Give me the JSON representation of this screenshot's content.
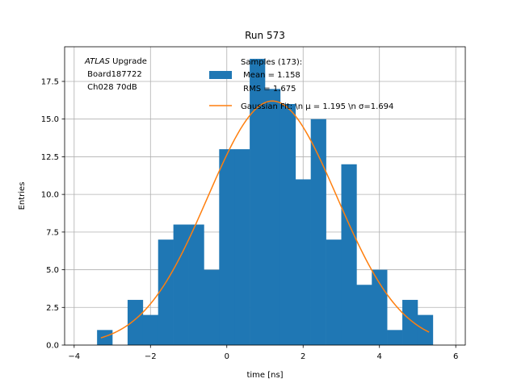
{
  "chart_data": {
    "type": "bar",
    "title": "Run 573",
    "xlabel": "time [ns]",
    "ylabel": "Entries",
    "xlim": [
      -4.25,
      6.25
    ],
    "ylim": [
      0,
      19.8
    ],
    "grid": true,
    "x_ticks": [
      -4,
      -2,
      0,
      2,
      4,
      6
    ],
    "x_tick_labels": [
      "−4",
      "−2",
      "0",
      "2",
      "4",
      "6"
    ],
    "y_ticks": [
      0,
      2.5,
      5,
      7.5,
      10,
      12.5,
      15,
      17.5
    ],
    "y_tick_labels": [
      "0.0",
      "2.5",
      "5.0",
      "7.5",
      "10.0",
      "12.5",
      "15.0",
      "17.5"
    ],
    "bin_edges": [
      -3.4,
      -3.0,
      -2.6,
      -2.2,
      -1.8,
      -1.4,
      -1.0,
      -0.6,
      -0.2,
      0.2,
      0.6,
      1.0,
      1.4,
      1.8,
      2.2,
      2.6,
      3.0,
      3.4,
      3.8,
      4.2,
      4.6,
      5.0,
      5.4
    ],
    "bin_counts": [
      1,
      0,
      3,
      2,
      7,
      8,
      8,
      5,
      13,
      13,
      19,
      17,
      16,
      11,
      15,
      7,
      12,
      4,
      5,
      1,
      3,
      2
    ],
    "histogram_color": "#1f77b4",
    "fit_color": "#ff7f0e",
    "fit": {
      "mu": 1.195,
      "sigma": 1.694,
      "amplitude": 16.2,
      "x_range": [
        -3.3,
        5.3
      ]
    },
    "legend": {
      "placement": "top-right",
      "hist_lines": [
        "Samples (173):",
        " Mean = 1.158",
        " RMS = 1.675"
      ],
      "fit_label": "Gaussian Fit: \\n μ = 1.195 \\n σ=1.694"
    },
    "annotation": {
      "atlas": "ATLAS",
      "upgrade": " Upgrade",
      "board": " Board187722",
      "channel": " Ch028 70dB"
    }
  }
}
